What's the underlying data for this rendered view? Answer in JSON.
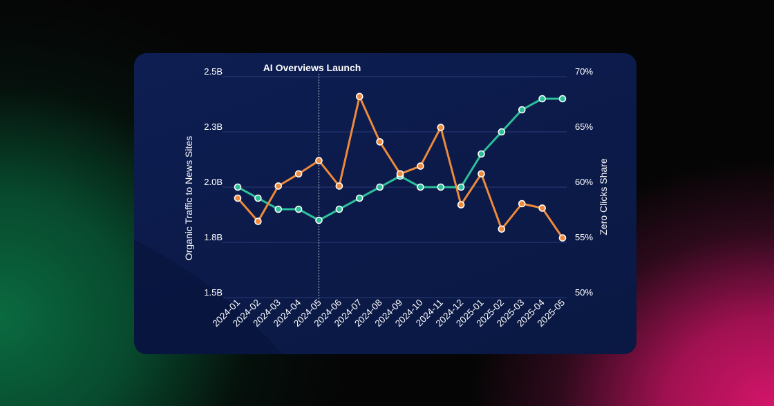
{
  "colors": {
    "traffic_series": "#2dbf9a",
    "zero_click_series": "#ee8a3c",
    "card_background": "#0c1b4a",
    "text": "#ffffff"
  },
  "chart_data": {
    "type": "line",
    "title": "",
    "categories": [
      "2024-01",
      "2024-02",
      "2024-03",
      "2024-04",
      "2024-05",
      "2024-06",
      "2024-07",
      "2024-08",
      "2024-09",
      "2024-10",
      "2024-11",
      "2024-12",
      "2025-01",
      "2025-02",
      "2025-03",
      "2025-04",
      "2025-05"
    ],
    "ylabel_left": "Organic Traffic to News Sites",
    "ylabel_right": "Zero Clicks Share",
    "ylim_left": [
      1.5,
      2.5
    ],
    "ylim_right": [
      50,
      70
    ],
    "yticks_left": [
      "1.5B",
      "1.8B",
      "2.0B",
      "2.3B",
      "2.5B"
    ],
    "yticks_right": [
      "50%",
      "55%",
      "60%",
      "65%",
      "70%"
    ],
    "grid": true,
    "annotation": {
      "label": "AI Overviews Launch",
      "x": "2024-05"
    },
    "series": [
      {
        "axis": "left",
        "values": [
          2.0,
          1.95,
          1.9,
          1.9,
          1.85,
          1.9,
          1.95,
          2.0,
          2.05,
          2.0,
          2.0,
          2.0,
          2.15,
          2.25,
          2.35,
          2.4,
          2.4
        ]
      },
      {
        "axis": "right",
        "values": [
          59,
          56.9,
          60.1,
          61.2,
          62.4,
          60.1,
          68.2,
          64.1,
          61.2,
          61.9,
          65.4,
          58.4,
          61.2,
          56.2,
          58.5,
          58.1,
          55.4
        ]
      }
    ]
  }
}
